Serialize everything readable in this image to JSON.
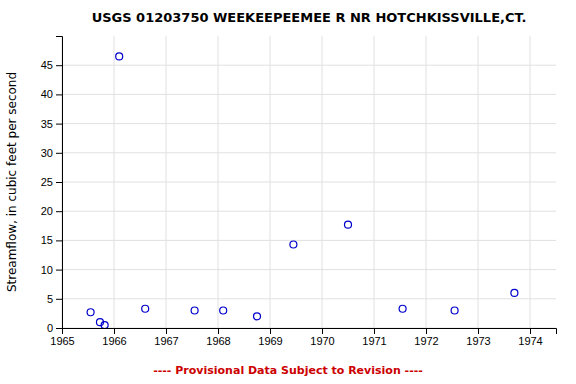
{
  "chart_data": {
    "type": "scatter",
    "title": "USGS 01203750 WEEKEEPEEMEE R NR HOTCHKISSVILLE,CT.",
    "ylabel": "Streamflow, in cubic feet per second",
    "x": [
      1965.55,
      1965.73,
      1965.82,
      1966.1,
      1966.6,
      1967.55,
      1968.1,
      1968.75,
      1969.45,
      1970.5,
      1971.55,
      1972.55,
      1973.7
    ],
    "values": [
      2.7,
      1.0,
      0.5,
      46.5,
      3.3,
      3.0,
      3.0,
      2.0,
      14.3,
      17.7,
      3.3,
      3.0,
      6.0
    ],
    "color": "#0000cc",
    "marker": "open-circle",
    "xlim": [
      1965.0,
      1974.5
    ],
    "ylim": [
      0,
      50
    ],
    "xticks": [
      1965,
      1966,
      1967,
      1968,
      1969,
      1970,
      1971,
      1972,
      1973,
      1974
    ],
    "yticks": [
      0,
      5,
      10,
      15,
      20,
      25,
      30,
      35,
      40,
      45
    ],
    "grid": true,
    "annotations": [
      {
        "text": "---- Provisional Data Subject to Revision ----",
        "color": "#cc0000"
      }
    ]
  }
}
